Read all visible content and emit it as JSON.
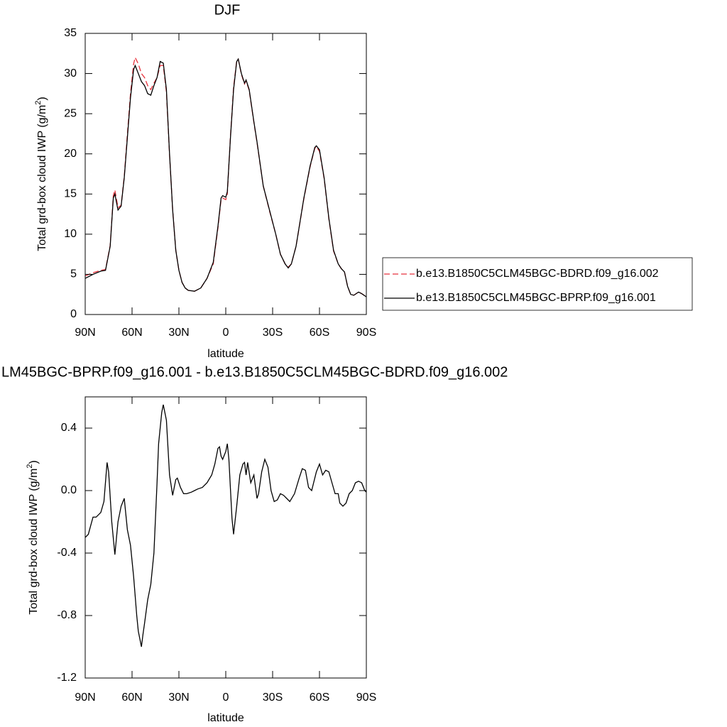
{
  "chart_data": [
    {
      "type": "line",
      "title": "DJF",
      "xlabel": "latitude",
      "ylabel": [
        "Total grd-box cloud IWP (g/m",
        "2",
        ")"
      ],
      "xlim": [
        90,
        -90
      ],
      "xticks": [
        {
          "value": 90,
          "label": "90N"
        },
        {
          "value": 60,
          "label": "60N"
        },
        {
          "value": 30,
          "label": "30N"
        },
        0,
        {
          "value": -30,
          "label": "30S"
        },
        {
          "value": -60,
          "label": "60S"
        },
        {
          "value": -90,
          "label": "90S"
        }
      ],
      "ylim": [
        0,
        35
      ],
      "yticks": [
        0,
        5,
        10,
        15,
        20,
        25,
        30,
        35
      ],
      "legend": "right",
      "x": [
        90,
        85,
        80,
        77,
        74,
        72,
        71,
        69,
        67,
        65,
        63,
        61,
        59,
        58,
        56,
        54,
        52,
        50,
        48,
        46,
        44,
        42,
        40,
        38,
        36,
        34,
        32,
        30,
        28,
        26,
        24,
        20,
        16,
        12,
        8,
        5,
        3,
        2,
        0,
        -1,
        -3,
        -5,
        -7,
        -8,
        -10,
        -12,
        -13,
        -15,
        -18,
        -20,
        -24,
        -28,
        -32,
        -35,
        -38,
        -40,
        -42,
        -45,
        -50,
        -54,
        -57,
        -58,
        -60,
        -63,
        -66,
        -69,
        -72,
        -74,
        -76,
        -78,
        -80,
        -82,
        -85,
        -87,
        -90
      ],
      "series": [
        {
          "name": "b.e13.B1850C5CLM45BGC-BDRD.f09_g16.002",
          "color": "#e8323c",
          "linestyle": "dashed",
          "values": [
            4.8,
            5.2,
            5.5,
            5.6,
            8.6,
            14.8,
            15.5,
            13.3,
            13.6,
            17.2,
            22.4,
            27.5,
            31.2,
            32,
            31.2,
            30,
            29.5,
            28.5,
            28,
            28.8,
            29.5,
            31,
            31,
            27.7,
            19.9,
            13,
            8,
            5.5,
            4,
            3.3,
            3.0,
            2.9,
            3.3,
            4.5,
            6.3,
            10.8,
            14.3,
            14.5,
            14.3,
            15,
            22.2,
            28.3,
            31.6,
            31.8,
            29.9,
            28.7,
            29.1,
            27.9,
            23.9,
            21.4,
            16,
            12.9,
            10,
            7.5,
            6.3,
            5.9,
            6.3,
            8.5,
            14.4,
            18.4,
            20.7,
            20.9,
            20.3,
            16.9,
            11.9,
            7.9,
            6.3,
            5.7,
            5.3,
            3.5,
            2.5,
            2.4,
            2.8,
            2.6,
            2.2
          ]
        },
        {
          "name": "b.e13.B1850C5CLM45BGC-BPRP.f09_g16.001",
          "color": "#000000",
          "linestyle": "solid",
          "values": [
            4.5,
            5.0,
            5.4,
            5.5,
            8.5,
            14.5,
            15.0,
            13.0,
            13.5,
            17,
            22,
            27,
            30.5,
            31,
            30,
            29,
            28.5,
            27.5,
            27.3,
            28.5,
            29.5,
            31.5,
            31.3,
            28,
            20,
            13,
            8,
            5.5,
            4,
            3.3,
            3.0,
            2.9,
            3.3,
            4.5,
            6.5,
            11,
            14.5,
            14.8,
            14.6,
            15.3,
            22,
            28,
            31.5,
            31.8,
            30,
            28.8,
            29.2,
            28,
            24,
            21.5,
            16,
            13,
            10,
            7.5,
            6.3,
            5.8,
            6.3,
            8.5,
            14.5,
            18.5,
            20.8,
            21.0,
            20.5,
            17,
            12,
            8,
            6.3,
            5.7,
            5.3,
            3.5,
            2.5,
            2.4,
            2.8,
            2.6,
            2.2
          ]
        }
      ]
    },
    {
      "type": "line",
      "title": "LM45BGC-BPRP.f09_g16.001 - b.e13.B1850C5CLM45BGC-BDRD.f09_g16.002",
      "xlabel": "latitude",
      "ylabel": [
        "Total grd-box cloud IWP (g/m",
        "2",
        ")"
      ],
      "xlim": [
        90,
        -90
      ],
      "xticks": [
        {
          "value": 90,
          "label": "90N"
        },
        {
          "value": 60,
          "label": "60N"
        },
        {
          "value": 30,
          "label": "30N"
        },
        0,
        {
          "value": -30,
          "label": "30S"
        },
        {
          "value": -60,
          "label": "60S"
        },
        {
          "value": -90,
          "label": "90S"
        }
      ],
      "ylim": [
        -1.2,
        0.6
      ],
      "yticks": [
        0.4,
        {
          "value": 0,
          "label": "0.0"
        },
        -0.4,
        -0.8,
        -1.2
      ],
      "x": [
        90,
        88,
        85,
        83,
        80,
        78,
        76,
        75,
        73,
        71,
        69,
        67,
        65,
        64,
        63,
        61,
        59,
        57,
        56,
        55,
        54,
        53,
        52,
        50,
        48,
        46,
        44,
        43,
        42,
        41,
        40,
        38,
        36,
        34,
        32,
        31,
        29,
        27,
        25,
        22,
        20,
        18,
        15,
        12,
        9,
        7,
        5,
        4,
        3,
        2,
        0,
        -1,
        -2,
        -4,
        -5,
        -7,
        -9,
        -11,
        -12,
        -13,
        -14,
        -16,
        -18,
        -20,
        -21,
        -23,
        -25,
        -27,
        -29,
        -31,
        -33,
        -35,
        -37,
        -39,
        -41,
        -44,
        -47,
        -49,
        -51,
        -53,
        -55,
        -58,
        -60,
        -62,
        -64,
        -66,
        -68,
        -70,
        -72,
        -73,
        -75,
        -77,
        -79,
        -81,
        -83,
        -85,
        -87,
        -89,
        -90
      ],
      "series": [
        {
          "color": "#000000",
          "linestyle": "solid",
          "values": [
            -0.3,
            -0.28,
            -0.17,
            -0.17,
            -0.14,
            -0.07,
            0.18,
            0.12,
            -0.2,
            -0.41,
            -0.2,
            -0.1,
            -0.05,
            -0.15,
            -0.25,
            -0.35,
            -0.55,
            -0.8,
            -0.9,
            -0.95,
            -1.0,
            -0.92,
            -0.85,
            -0.7,
            -0.6,
            -0.4,
            0.05,
            0.3,
            0.4,
            0.5,
            0.55,
            0.45,
            0.1,
            -0.03,
            0.07,
            0.08,
            0.02,
            -0.02,
            -0.02,
            -0.01,
            0.0,
            0.01,
            0.02,
            0.05,
            0.1,
            0.17,
            0.27,
            0.28,
            0.22,
            0.2,
            0.25,
            0.3,
            0.2,
            -0.18,
            -0.28,
            -0.1,
            0.1,
            0.17,
            0.18,
            0.1,
            0.18,
            0.05,
            0.1,
            -0.05,
            -0.02,
            0.12,
            0.2,
            0.15,
            0.0,
            -0.07,
            -0.06,
            -0.02,
            -0.03,
            -0.05,
            -0.07,
            -0.02,
            0.08,
            0.14,
            0.13,
            0.02,
            0.0,
            0.12,
            0.17,
            0.1,
            0.13,
            0.12,
            0.05,
            -0.02,
            -0.02,
            -0.08,
            -0.1,
            -0.08,
            -0.02,
            0.0,
            0.05,
            0.06,
            0.05,
            0.0,
            -0.01
          ]
        }
      ]
    }
  ]
}
